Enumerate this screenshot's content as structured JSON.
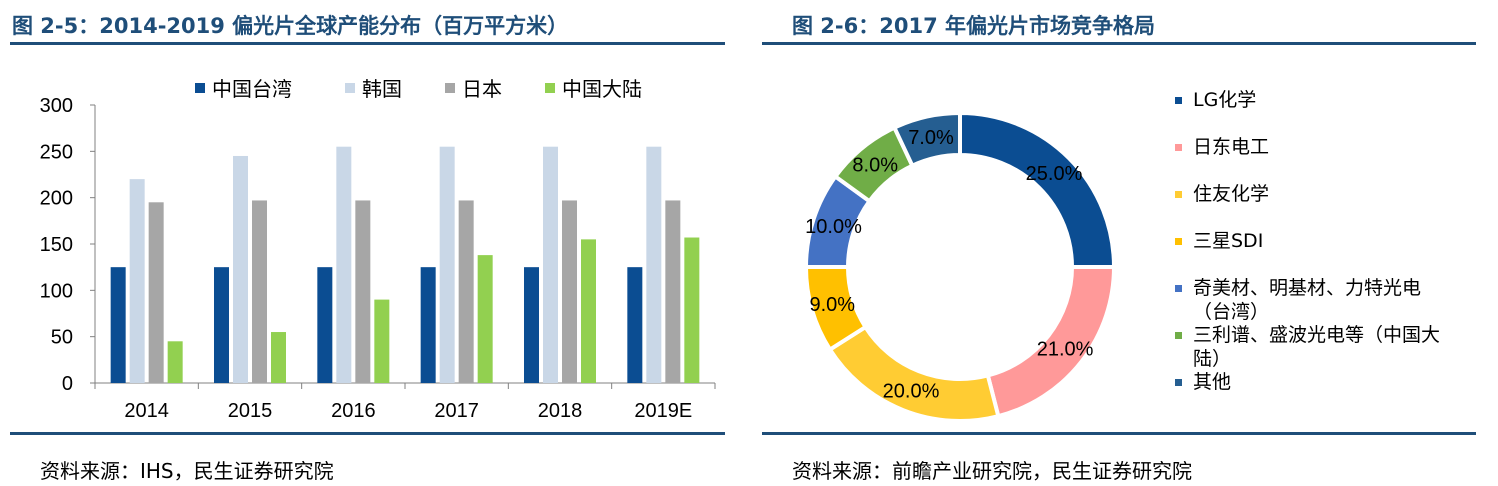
{
  "left": {
    "title": "图 2-5：2014-2019 偏光片全球产能分布（百万平方米）",
    "source": "资料来源：IHS，民生证券研究院"
  },
  "right": {
    "title": "图 2-6：2017 年偏光片市场竞争格局",
    "source": "资料来源：前瞻产业研究院，民生证券研究院"
  },
  "chart_data": [
    {
      "type": "bar",
      "categories": [
        "2014",
        "2015",
        "2016",
        "2017",
        "2018",
        "2019E"
      ],
      "series": [
        {
          "name": "中国台湾",
          "color": "#0b4d92",
          "values": [
            125,
            125,
            125,
            125,
            125,
            125
          ]
        },
        {
          "name": "韩国",
          "color": "#c9d7e7",
          "values": [
            220,
            245,
            255,
            255,
            255,
            255
          ]
        },
        {
          "name": "日本",
          "color": "#a6a6a6",
          "values": [
            195,
            197,
            197,
            197,
            197,
            197
          ]
        },
        {
          "name": "中国大陆",
          "color": "#92d050",
          "values": [
            45,
            55,
            90,
            138,
            155,
            157
          ]
        }
      ],
      "ylim": [
        0,
        300
      ],
      "yticks": [
        "0",
        "50",
        "100",
        "150",
        "200",
        "250",
        "300"
      ],
      "grid": false,
      "legend": "top"
    },
    {
      "type": "pie",
      "donut": true,
      "slices": [
        {
          "name": "LG化学",
          "value": 25.0,
          "label": "25.0%",
          "color": "#0b4d92"
        },
        {
          "name": "日东电工",
          "value": 21.0,
          "label": "21.0%",
          "color": "#ff9999"
        },
        {
          "name": "住友化学",
          "value": 20.0,
          "label": "20.0%",
          "color": "#ffcc33"
        },
        {
          "name": "三星SDI",
          "value": 9.0,
          "label": "9.0%",
          "color": "#ffc000"
        },
        {
          "name": "奇美材、明基材、力特光电（台湾）",
          "value": 10.0,
          "label": "10.0%",
          "color": "#4472c4"
        },
        {
          "name": "三利谱、盛波光电等（中国大陆）",
          "value": 8.0,
          "label": "8.0%",
          "color": "#70ad47"
        },
        {
          "name": "其他",
          "value": 7.0,
          "label": "7.0%",
          "color": "#255e91"
        }
      ],
      "legend": "right"
    }
  ]
}
